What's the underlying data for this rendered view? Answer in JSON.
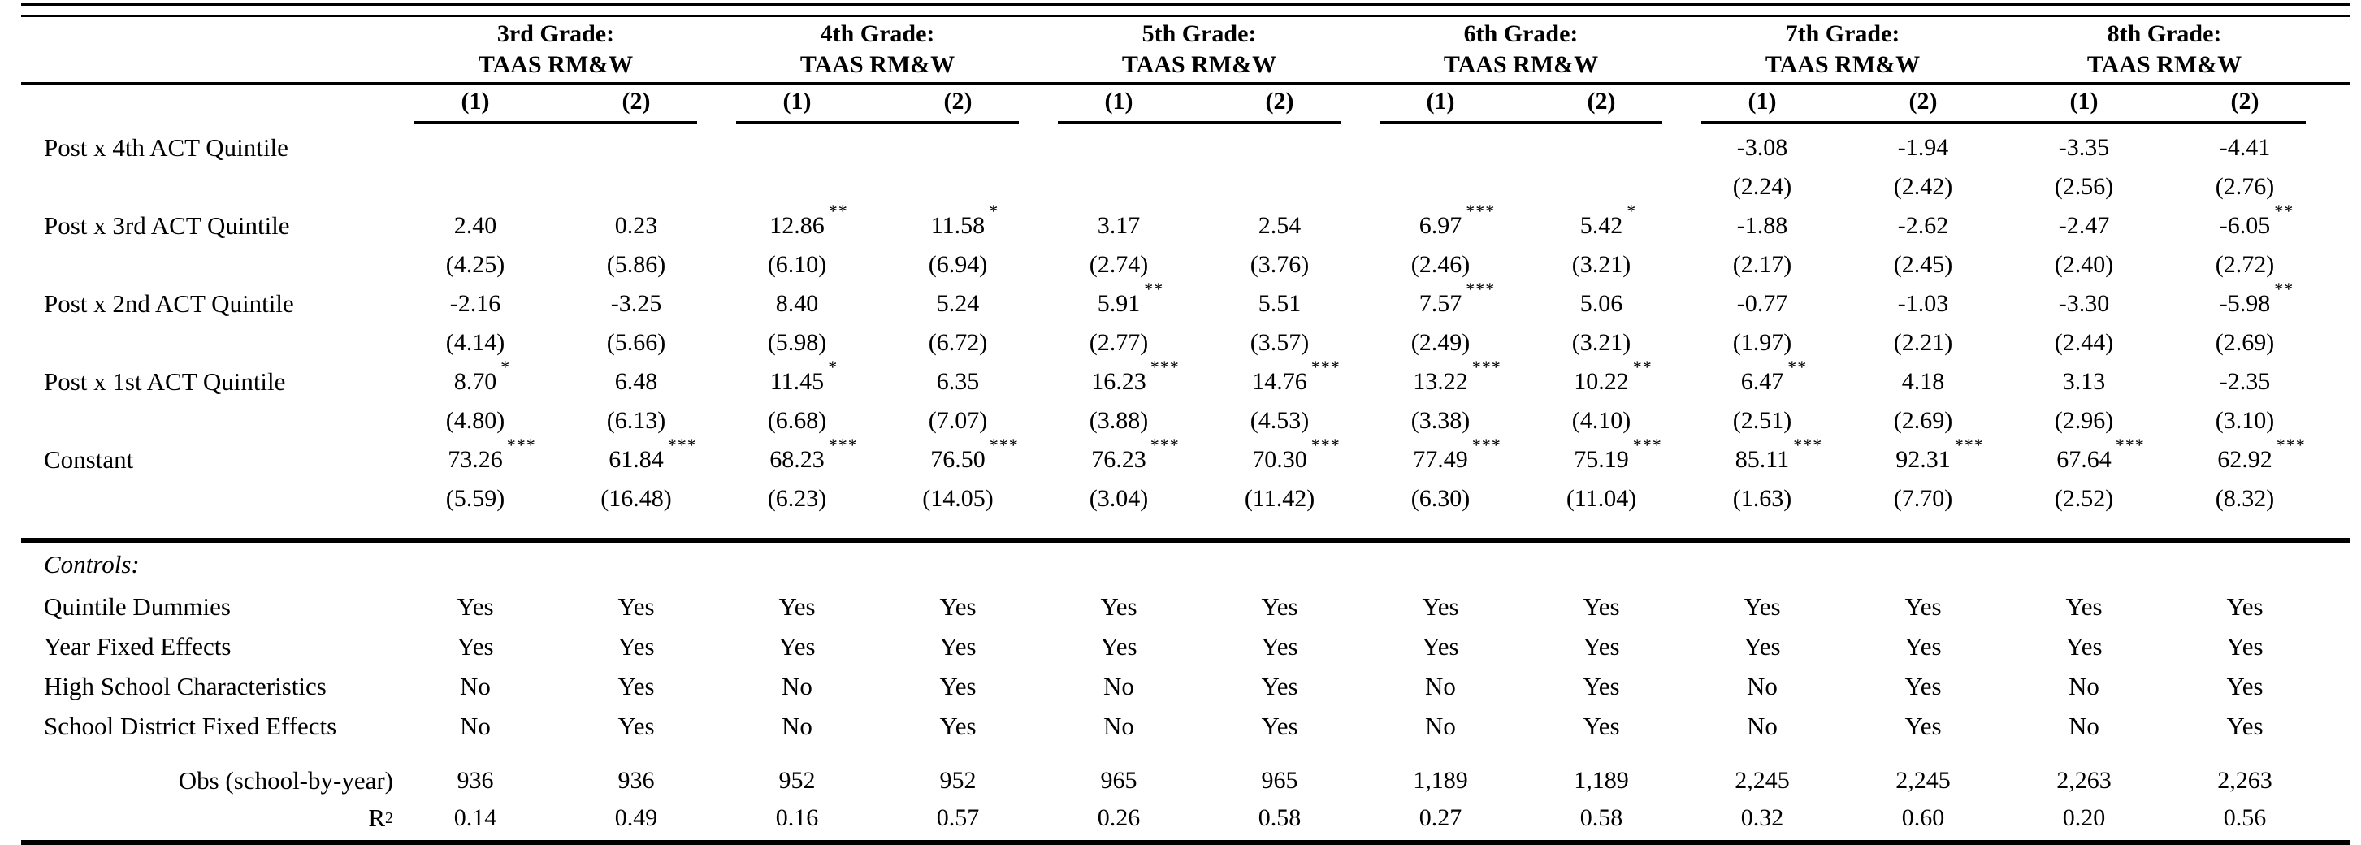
{
  "table": {
    "grade_groups": [
      {
        "title_line1": "3rd Grade:",
        "title_line2": "TAAS RM&W",
        "cols": [
          "(1)",
          "(2)"
        ]
      },
      {
        "title_line1": "4th Grade:",
        "title_line2": "TAAS RM&W",
        "cols": [
          "(1)",
          "(2)"
        ]
      },
      {
        "title_line1": "5th Grade:",
        "title_line2": "TAAS RM&W",
        "cols": [
          "(1)",
          "(2)"
        ]
      },
      {
        "title_line1": "6th Grade:",
        "title_line2": "TAAS RM&W",
        "cols": [
          "(1)",
          "(2)"
        ]
      },
      {
        "title_line1": "7th Grade:",
        "title_line2": "TAAS RM&W",
        "cols": [
          "(1)",
          "(2)"
        ]
      },
      {
        "title_line1": "8th Grade:",
        "title_line2": "TAAS RM&W",
        "cols": [
          "(1)",
          "(2)"
        ]
      }
    ],
    "coef_rows": [
      {
        "label": "Post x 4th ACT Quintile",
        "values": [
          "",
          "",
          "",
          "",
          "",
          "",
          "",
          "",
          "-3.08",
          "-1.94",
          "-3.35",
          "-4.41"
        ],
        "stars": [
          "",
          "",
          "",
          "",
          "",
          "",
          "",
          "",
          "",
          "",
          "",
          ""
        ],
        "ses": [
          "",
          "",
          "",
          "",
          "",
          "",
          "",
          "",
          "(2.24)",
          "(2.42)",
          "(2.56)",
          "(2.76)"
        ]
      },
      {
        "label": "Post x 3rd ACT Quintile",
        "values": [
          "2.40",
          "0.23",
          "12.86",
          "11.58",
          "3.17",
          "2.54",
          "6.97",
          "5.42",
          "-1.88",
          "-2.62",
          "-2.47",
          "-6.05"
        ],
        "stars": [
          "",
          "",
          "**",
          "*",
          "",
          "",
          "***",
          "*",
          "",
          "",
          "",
          "**"
        ],
        "ses": [
          "(4.25)",
          "(5.86)",
          "(6.10)",
          "(6.94)",
          "(2.74)",
          "(3.76)",
          "(2.46)",
          "(3.21)",
          "(2.17)",
          "(2.45)",
          "(2.40)",
          "(2.72)"
        ]
      },
      {
        "label": "Post x 2nd ACT Quintile",
        "values": [
          "-2.16",
          "-3.25",
          "8.40",
          "5.24",
          "5.91",
          "5.51",
          "7.57",
          "5.06",
          "-0.77",
          "-1.03",
          "-3.30",
          "-5.98"
        ],
        "stars": [
          "",
          "",
          "",
          "",
          "**",
          "",
          "***",
          "",
          "",
          "",
          "",
          "**"
        ],
        "ses": [
          "(4.14)",
          "(5.66)",
          "(5.98)",
          "(6.72)",
          "(2.77)",
          "(3.57)",
          "(2.49)",
          "(3.21)",
          "(1.97)",
          "(2.21)",
          "(2.44)",
          "(2.69)"
        ]
      },
      {
        "label": "Post x 1st ACT Quintile",
        "values": [
          "8.70",
          "6.48",
          "11.45",
          "6.35",
          "16.23",
          "14.76",
          "13.22",
          "10.22",
          "6.47",
          "4.18",
          "3.13",
          "-2.35"
        ],
        "stars": [
          "*",
          "",
          "*",
          "",
          "***",
          "***",
          "***",
          "**",
          "**",
          "",
          "",
          ""
        ],
        "ses": [
          "(4.80)",
          "(6.13)",
          "(6.68)",
          "(7.07)",
          "(3.88)",
          "(4.53)",
          "(3.38)",
          "(4.10)",
          "(2.51)",
          "(2.69)",
          "(2.96)",
          "(3.10)"
        ]
      },
      {
        "label": "Constant",
        "values": [
          "73.26",
          "61.84",
          "68.23",
          "76.50",
          "76.23",
          "70.30",
          "77.49",
          "75.19",
          "85.11",
          "92.31",
          "67.64",
          "62.92"
        ],
        "stars": [
          "***",
          "***",
          "***",
          "***",
          "***",
          "***",
          "***",
          "***",
          "***",
          "***",
          "***",
          "***"
        ],
        "ses": [
          "(5.59)",
          "(16.48)",
          "(6.23)",
          "(14.05)",
          "(3.04)",
          "(11.42)",
          "(6.30)",
          "(11.04)",
          "(1.63)",
          "(7.70)",
          "(2.52)",
          "(8.32)"
        ]
      }
    ],
    "controls": {
      "heading": "Controls:",
      "rows": [
        {
          "label": "Quintile Dummies",
          "values": [
            "Yes",
            "Yes",
            "Yes",
            "Yes",
            "Yes",
            "Yes",
            "Yes",
            "Yes",
            "Yes",
            "Yes",
            "Yes",
            "Yes"
          ]
        },
        {
          "label": "Year Fixed Effects",
          "values": [
            "Yes",
            "Yes",
            "Yes",
            "Yes",
            "Yes",
            "Yes",
            "Yes",
            "Yes",
            "Yes",
            "Yes",
            "Yes",
            "Yes"
          ]
        },
        {
          "label": "High School Characteristics",
          "values": [
            "No",
            "Yes",
            "No",
            "Yes",
            "No",
            "Yes",
            "No",
            "Yes",
            "No",
            "Yes",
            "No",
            "Yes"
          ]
        },
        {
          "label": "School District Fixed Effects",
          "values": [
            "No",
            "Yes",
            "No",
            "Yes",
            "No",
            "Yes",
            "No",
            "Yes",
            "No",
            "Yes",
            "No",
            "Yes"
          ]
        }
      ]
    },
    "stats": [
      {
        "label": "Obs (school-by-year)",
        "sup": "",
        "values": [
          "936",
          "936",
          "952",
          "952",
          "965",
          "965",
          "1,189",
          "1,189",
          "2,245",
          "2,245",
          "2,263",
          "2,263"
        ]
      },
      {
        "label": "R",
        "sup": "2",
        "values": [
          "0.14",
          "0.49",
          "0.16",
          "0.57",
          "0.26",
          "0.58",
          "0.27",
          "0.58",
          "0.32",
          "0.60",
          "0.20",
          "0.56"
        ]
      }
    ]
  }
}
